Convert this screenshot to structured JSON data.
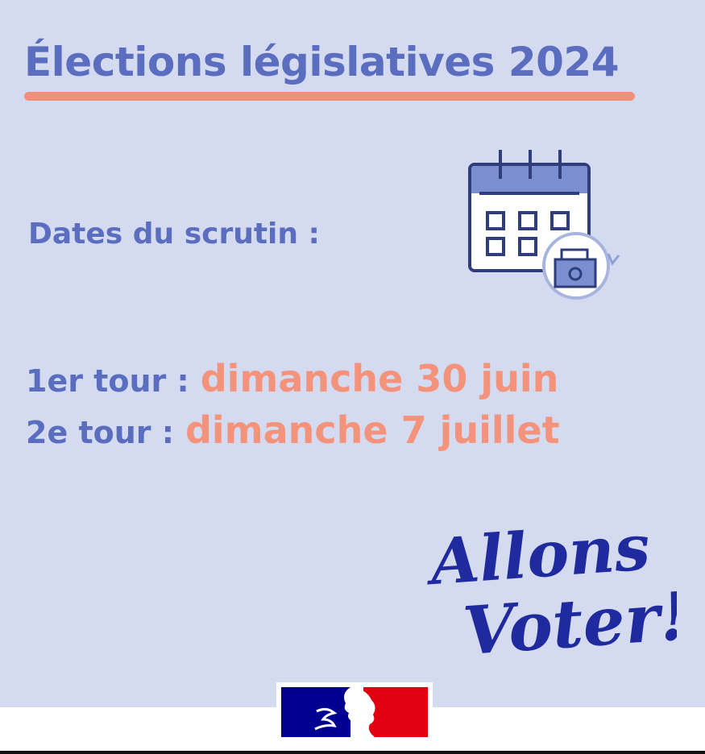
{
  "title": "Élections législatives 2024",
  "subtitle": "Dates du scrutin :",
  "rounds": [
    {
      "label": "1er tour :",
      "date": "dimanche 30 juin"
    },
    {
      "label": "2e tour :",
      "date": "dimanche 7 juillet"
    }
  ],
  "slogan": {
    "line1": "Allons",
    "line2": "Voter!"
  },
  "logo": "Marianne logo (République française)",
  "colors": {
    "background": "#d4daef",
    "title": "#5a6dbf",
    "accent": "#f4937b",
    "slogan": "#1e2a9e",
    "flag_blue": "#000091",
    "flag_red": "#e1000f"
  },
  "icons": [
    "calendar-ballot-box-icon",
    "marianne-logo"
  ]
}
